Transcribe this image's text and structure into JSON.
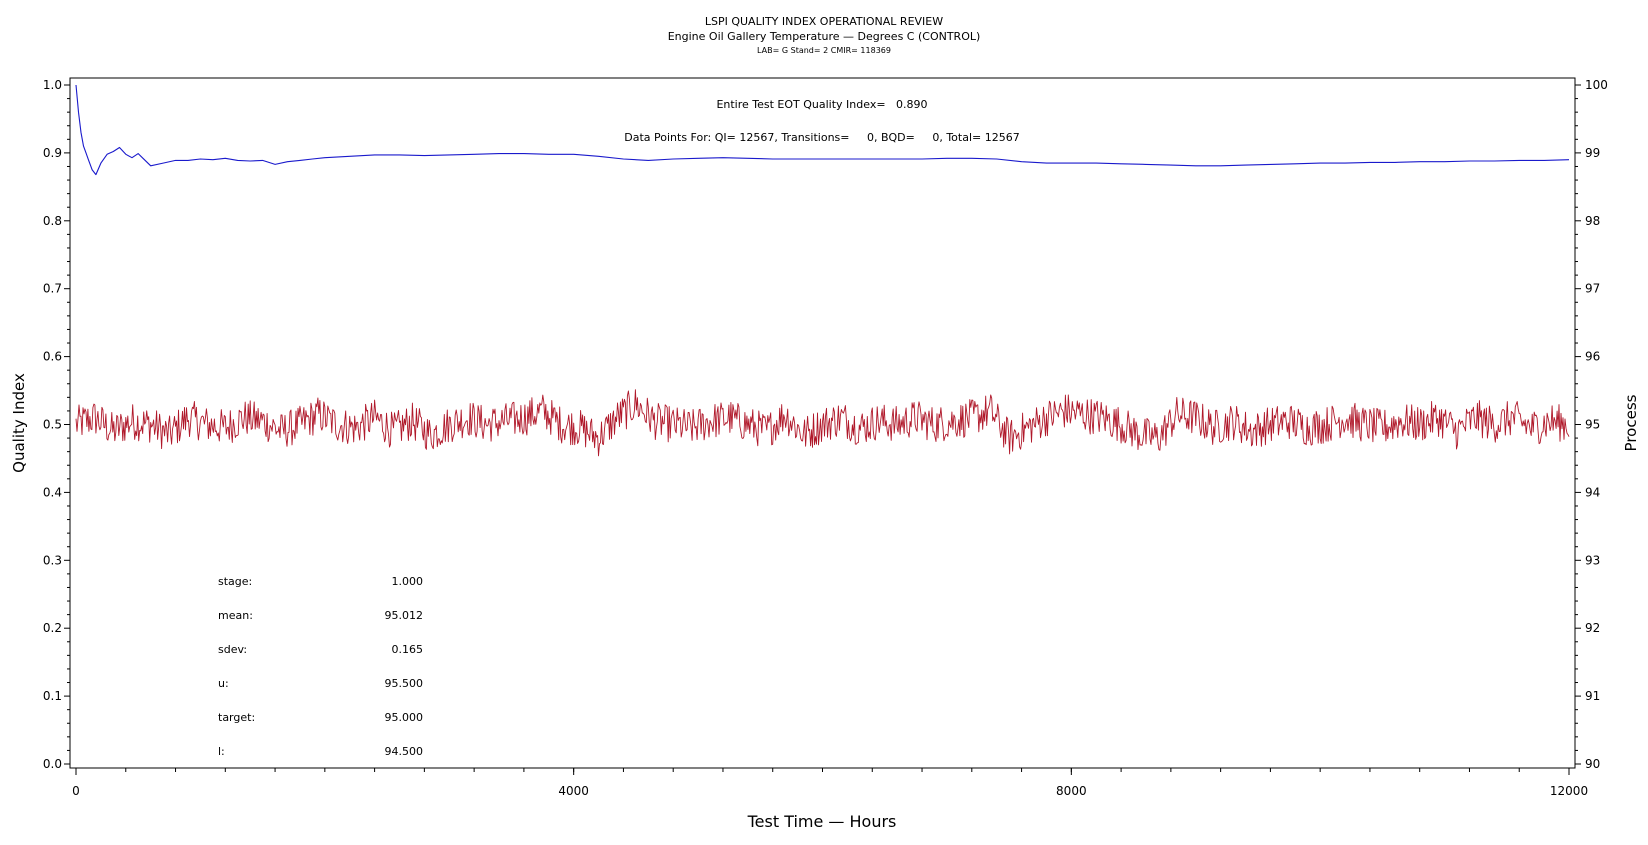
{
  "chart_data": {
    "type": "line",
    "title": "LSPI QUALITY INDEX OPERATIONAL REVIEW",
    "subtitle": "Engine Oil Gallery Temperature — Degrees C (CONTROL)",
    "subtitle2": "LAB= G Stand= 2 CMIR= 118369",
    "xlabel": "Test Time — Hours",
    "ylabel": "Quality Index",
    "y2label": "Process",
    "xlim": [
      0,
      12000
    ],
    "ylim": [
      0,
      1
    ],
    "y2lim": [
      90,
      100
    ],
    "x_ticks": [
      "0",
      "4000",
      "8000",
      "12000"
    ],
    "y_ticks": [
      "0.0",
      "0.1",
      "0.2",
      "0.3",
      "0.4",
      "0.5",
      "0.6",
      "0.7",
      "0.8",
      "0.9",
      "1.0"
    ],
    "y2_ticks": [
      "90",
      "91",
      "92",
      "93",
      "94",
      "95",
      "96",
      "97",
      "98",
      "99",
      "100"
    ],
    "annotations": {
      "quality_index_line": "Entire Test EOT Quality Index=   0.890",
      "data_points_line": "Data Points For: QI= 12567, Transitions=     0, BQD=     0, Total= 12567"
    },
    "stats": [
      {
        "label": "stage:",
        "value": "1.000"
      },
      {
        "label": "mean:",
        "value": "95.012"
      },
      {
        "label": "sdev:",
        "value": "0.165"
      },
      {
        "label": "u:",
        "value": "95.500"
      },
      {
        "label": "target:",
        "value": "95.000"
      },
      {
        "label": "l:",
        "value": "94.500"
      }
    ],
    "series": [
      {
        "axis": "left",
        "color": "#1a1acc",
        "x": [
          0,
          20,
          40,
          60,
          80,
          100,
          130,
          160,
          200,
          250,
          300,
          350,
          400,
          450,
          500,
          550,
          600,
          700,
          800,
          900,
          1000,
          1100,
          1200,
          1300,
          1400,
          1500,
          1600,
          1700,
          1800,
          1900,
          2000,
          2200,
          2400,
          2600,
          2800,
          3000,
          3200,
          3400,
          3600,
          3800,
          4000,
          4200,
          4400,
          4600,
          4800,
          5000,
          5200,
          5400,
          5600,
          5800,
          6000,
          6200,
          6400,
          6600,
          6800,
          7000,
          7200,
          7400,
          7600,
          7800,
          8000,
          8200,
          8400,
          8600,
          8800,
          9000,
          9200,
          9400,
          9600,
          9800,
          10000,
          10200,
          10400,
          10600,
          10800,
          11000,
          11200,
          11400,
          11600,
          11800,
          12000
        ],
        "values": [
          1.0,
          0.96,
          0.93,
          0.91,
          0.9,
          0.89,
          0.875,
          0.868,
          0.885,
          0.898,
          0.902,
          0.908,
          0.898,
          0.893,
          0.899,
          0.89,
          0.881,
          0.885,
          0.889,
          0.889,
          0.891,
          0.89,
          0.892,
          0.889,
          0.888,
          0.889,
          0.883,
          0.887,
          0.889,
          0.891,
          0.893,
          0.895,
          0.897,
          0.897,
          0.896,
          0.897,
          0.898,
          0.899,
          0.899,
          0.898,
          0.898,
          0.895,
          0.891,
          0.889,
          0.891,
          0.892,
          0.893,
          0.892,
          0.891,
          0.891,
          0.891,
          0.891,
          0.891,
          0.891,
          0.891,
          0.892,
          0.892,
          0.891,
          0.887,
          0.885,
          0.885,
          0.885,
          0.884,
          0.883,
          0.882,
          0.881,
          0.881,
          0.882,
          0.883,
          0.884,
          0.885,
          0.885,
          0.886,
          0.886,
          0.887,
          0.887,
          0.888,
          0.888,
          0.889,
          0.889,
          0.89
        ]
      },
      {
        "axis": "right",
        "color": "#b0182a",
        "x": [
          0,
          150,
          300,
          450,
          600,
          750,
          900,
          1050,
          1200,
          1350,
          1500,
          1650,
          1800,
          1950,
          2100,
          2250,
          2400,
          2550,
          2700,
          2850,
          3000,
          3150,
          3300,
          3450,
          3600,
          3750,
          3900,
          4050,
          4200,
          4350,
          4500,
          4650,
          4800,
          4950,
          5100,
          5250,
          5400,
          5550,
          5700,
          5850,
          6000,
          6150,
          6300,
          6450,
          6600,
          6750,
          6900,
          7050,
          7200,
          7350,
          7500,
          7650,
          7800,
          7950,
          8100,
          8250,
          8400,
          8550,
          8700,
          8850,
          9000,
          9150,
          9300,
          9450,
          9600,
          9750,
          9900,
          10050,
          10200,
          10350,
          10500,
          10650,
          10800,
          10950,
          11100,
          11250,
          11400,
          11550,
          11700,
          11850,
          12000
        ],
        "values": [
          95.0,
          95.1,
          94.9,
          95.05,
          95.0,
          94.85,
          95.1,
          95.0,
          94.95,
          95.1,
          95.05,
          94.9,
          95.0,
          95.15,
          95.0,
          94.95,
          95.1,
          94.9,
          95.05,
          94.85,
          95.0,
          95.1,
          95.0,
          95.05,
          95.1,
          95.2,
          95.0,
          94.95,
          94.8,
          95.1,
          95.3,
          95.05,
          95.0,
          94.95,
          95.05,
          95.1,
          95.0,
          94.9,
          95.15,
          94.85,
          95.0,
          95.1,
          94.95,
          95.05,
          95.0,
          95.1,
          95.0,
          95.05,
          95.1,
          95.2,
          94.8,
          94.95,
          95.1,
          95.2,
          95.15,
          95.1,
          95.0,
          94.85,
          94.8,
          95.15,
          95.1,
          94.95,
          95.05,
          94.9,
          95.0,
          95.05,
          94.95,
          95.0,
          95.1,
          95.0,
          94.95,
          95.05,
          95.0,
          95.1,
          94.9,
          95.1,
          95.0,
          95.1,
          94.95,
          95.05,
          95.0
        ]
      }
    ]
  }
}
